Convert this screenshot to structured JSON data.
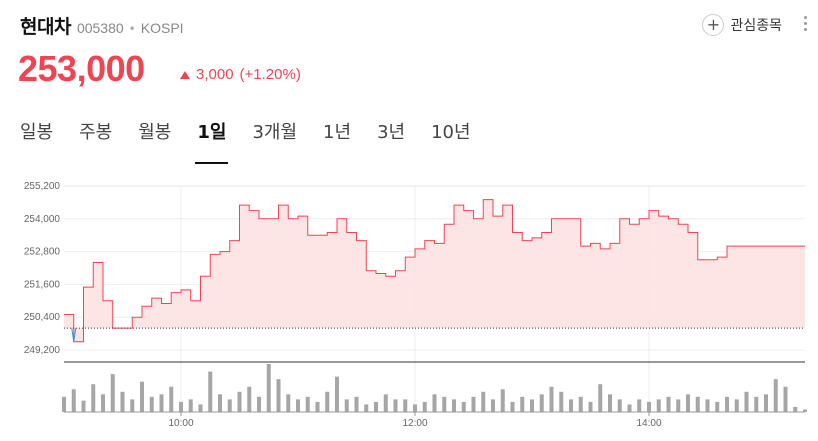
{
  "stock": {
    "name": "현대차",
    "code": "005380",
    "market": "KOSPI",
    "price": "253,000",
    "change": "3,000",
    "change_pct": "(+1.20%)"
  },
  "actions": {
    "watch_label": "관심종목"
  },
  "tabs": [
    {
      "label": "일봉"
    },
    {
      "label": "주봉"
    },
    {
      "label": "월봉"
    },
    {
      "label": "1일",
      "active": true
    },
    {
      "label": "3개월"
    },
    {
      "label": "1년"
    },
    {
      "label": "3년"
    },
    {
      "label": "10년"
    }
  ],
  "colors": {
    "up": "#f04452",
    "down": "#3b8fe0",
    "area": "#fde2e2",
    "volume": "#a6a6a6"
  },
  "chart_data": {
    "type": "area",
    "y_ticks": [
      "255,200",
      "254,000",
      "252,800",
      "251,600",
      "250,400",
      "249,200"
    ],
    "y_tick_values": [
      255200,
      254000,
      252800,
      251600,
      250400,
      249200
    ],
    "ylim": [
      249200,
      255200
    ],
    "x_ticks": [
      "10:00",
      "12:00",
      "14:00"
    ],
    "x_tick_minutes": [
      600,
      720,
      840
    ],
    "xlim": [
      540,
      920
    ],
    "prev_close": 250000,
    "x": [
      540,
      545,
      550,
      555,
      560,
      565,
      570,
      575,
      580,
      585,
      590,
      595,
      600,
      605,
      610,
      615,
      620,
      625,
      630,
      635,
      640,
      645,
      650,
      655,
      660,
      665,
      670,
      675,
      680,
      685,
      690,
      695,
      700,
      705,
      710,
      715,
      720,
      725,
      730,
      735,
      740,
      745,
      750,
      755,
      760,
      765,
      770,
      775,
      780,
      785,
      790,
      795,
      800,
      805,
      810,
      815,
      820,
      825,
      830,
      835,
      840,
      845,
      850,
      855,
      860,
      865,
      870,
      875,
      880,
      885,
      890,
      895,
      900,
      905,
      910,
      915,
      920
    ],
    "values": [
      250500,
      249500,
      251500,
      252400,
      251000,
      250000,
      250000,
      250400,
      250800,
      251100,
      250900,
      251300,
      251400,
      251000,
      251900,
      252700,
      252800,
      253200,
      254500,
      254300,
      254000,
      254000,
      254500,
      254000,
      254100,
      253400,
      253400,
      253500,
      254000,
      253500,
      253200,
      252100,
      252000,
      251900,
      252100,
      252600,
      252900,
      253200,
      253100,
      253800,
      254500,
      254300,
      254000,
      254700,
      254100,
      254500,
      253500,
      253200,
      253300,
      253500,
      254000,
      254000,
      254000,
      253000,
      253100,
      252900,
      253100,
      254000,
      253800,
      254000,
      254300,
      254100,
      254000,
      253800,
      253500,
      252500,
      252500,
      252600,
      253000,
      253000,
      253000,
      253000,
      253000,
      253000,
      253000,
      253000,
      253000
    ],
    "volume": [
      12,
      18,
      9,
      22,
      14,
      30,
      16,
      10,
      24,
      12,
      14,
      20,
      8,
      10,
      6,
      32,
      14,
      10,
      16,
      20,
      12,
      38,
      26,
      14,
      10,
      12,
      8,
      16,
      28,
      10,
      12,
      6,
      8,
      14,
      10,
      10,
      6,
      8,
      14,
      12,
      10,
      8,
      12,
      16,
      10,
      18,
      8,
      12,
      10,
      14,
      20,
      16,
      10,
      12,
      8,
      22,
      14,
      10,
      6,
      10,
      8,
      10,
      12,
      10,
      14,
      12,
      10,
      8,
      12,
      10,
      16,
      12,
      14,
      26,
      20,
      4,
      2
    ]
  }
}
